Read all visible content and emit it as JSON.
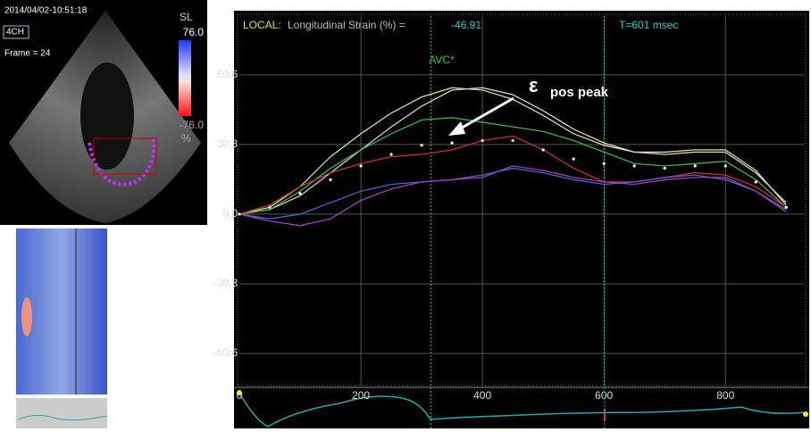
{
  "left_panel": {
    "timestamp": "2014/04/02-10:51:18",
    "view": "4CH",
    "frame": "Frame = 24",
    "scale_name": "SL",
    "scale_max": "76.0",
    "scale_min": "-76.0",
    "scale_unit": "%"
  },
  "header": {
    "mode": "LOCAL:",
    "measure": "Longitudinal Strain (%) =",
    "measure_value": "-46.91",
    "time": "T=601 msec"
  },
  "chart_data": {
    "type": "line",
    "x": [
      0,
      50,
      100,
      150,
      200,
      250,
      300,
      350,
      400,
      450,
      500,
      550,
      600,
      650,
      700,
      750,
      800,
      850,
      900
    ],
    "series": [
      {
        "color": "#c8e68c",
        "values": [
          0,
          3,
          12,
          25,
          35,
          44,
          51,
          55,
          54,
          50,
          43,
          35,
          30,
          27,
          26,
          27,
          27,
          18,
          5
        ]
      },
      {
        "color": "#e6c8d6",
        "values": [
          0,
          2,
          8,
          18,
          28,
          38,
          47,
          54,
          55,
          52,
          45,
          37,
          31,
          27,
          27,
          28,
          28,
          19,
          4
        ]
      },
      {
        "color": "#3cb44b",
        "values": [
          0,
          2,
          10,
          20,
          28,
          35,
          41,
          42,
          40,
          38,
          36,
          32,
          27,
          22,
          21,
          22,
          23,
          15,
          3
        ]
      },
      {
        "color": "#c83232",
        "values": [
          0,
          4,
          12,
          18,
          22,
          25,
          26,
          28,
          32,
          34,
          28,
          20,
          14,
          14,
          16,
          18,
          17,
          12,
          3
        ]
      },
      {
        "color": "#5064c8",
        "values": [
          0,
          -2,
          0,
          5,
          10,
          13,
          14,
          15,
          17,
          20,
          18,
          15,
          13,
          14,
          16,
          17,
          15,
          10,
          2
        ]
      },
      {
        "color": "#a040c0",
        "values": [
          0,
          -3,
          -5,
          -2,
          6,
          11,
          14,
          15,
          16,
          21,
          19,
          16,
          14,
          13,
          15,
          16,
          16,
          10,
          1
        ]
      },
      {
        "color": "#ffffff",
        "style": "dotted",
        "values": [
          0,
          3,
          9,
          15,
          21,
          26,
          30,
          31,
          32,
          32,
          28,
          24,
          22,
          21,
          20,
          21,
          21,
          14,
          3
        ]
      }
    ],
    "xlim": [
      0,
      929
    ],
    "xticks": [
      0,
      200,
      400,
      600,
      800
    ],
    "ylim": [
      -74.6,
      86.2
    ],
    "yticks": [
      60.6,
      30.3,
      {
        "value": 0,
        "label": "0.0"
      },
      -30.3,
      -60.6
    ],
    "grid": true,
    "markers": [
      {
        "x": 315,
        "label": "AVC*",
        "color": "#33cc33"
      },
      {
        "x": 601,
        "color": "#22aaaa"
      }
    ],
    "annotation": {
      "symbol": "ε",
      "text": "pos peak"
    }
  }
}
